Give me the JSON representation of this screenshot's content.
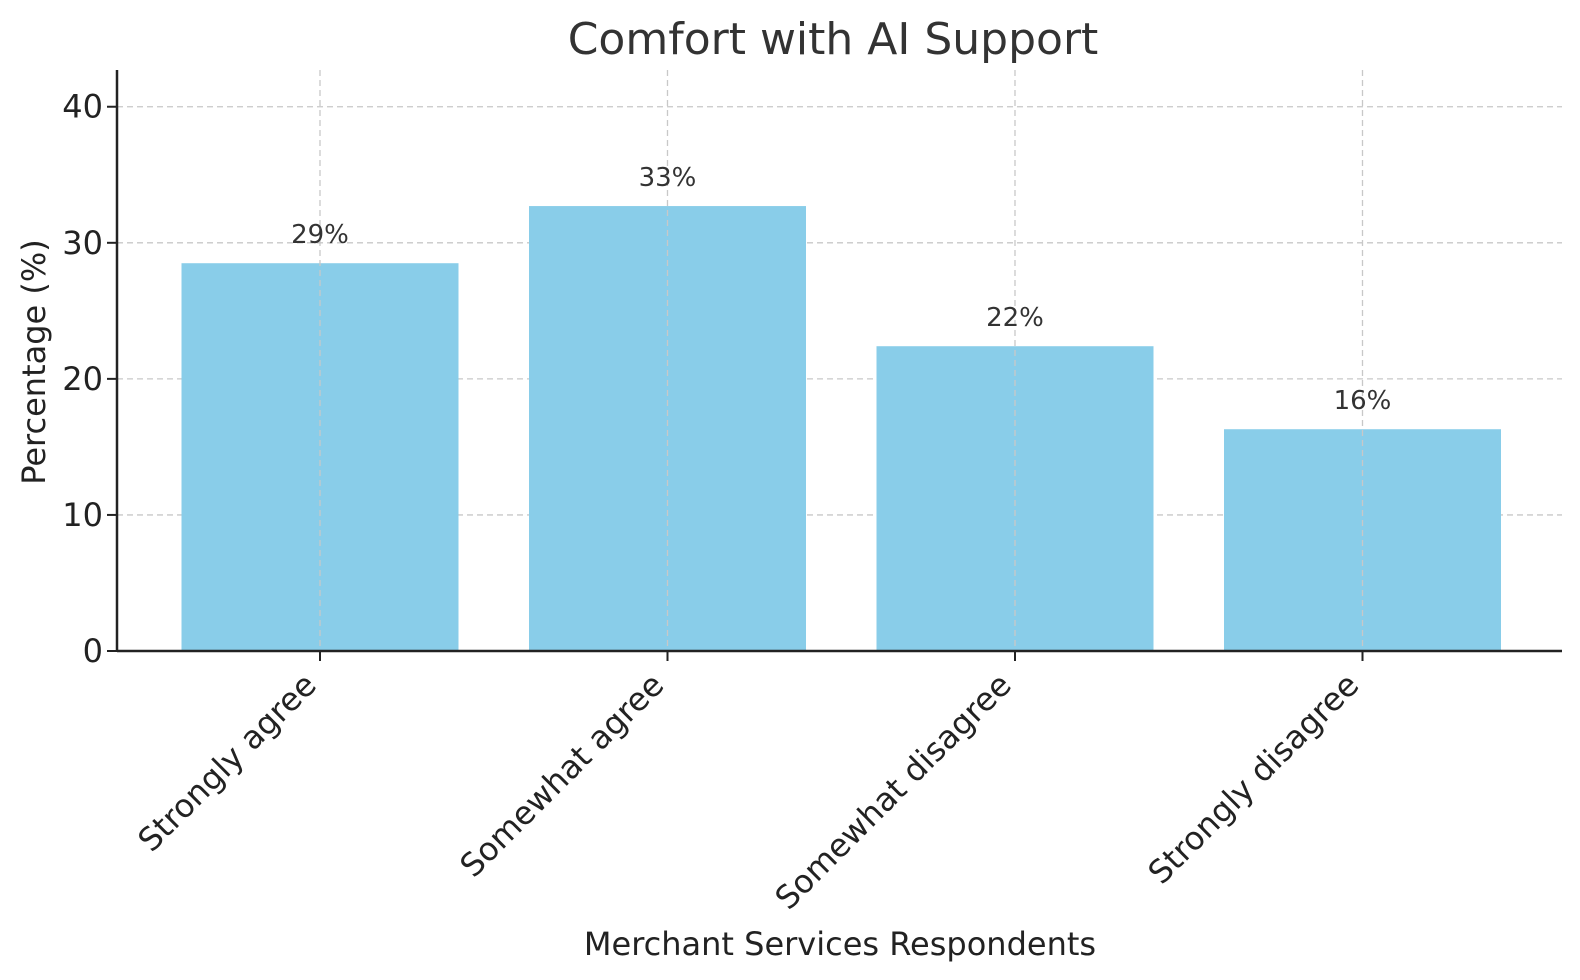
{
  "chart_data": {
    "type": "bar",
    "title": "Comfort with AI Support",
    "xlabel": "Merchant Services Respondents",
    "ylabel": "Percentage (%)",
    "categories": [
      "Strongly agree",
      "Somewhat agree",
      "Somewhat disagree",
      "Strongly disagree"
    ],
    "values": [
      28.5,
      32.7,
      22.4,
      16.3
    ],
    "value_labels": [
      "29%",
      "33%",
      "22%",
      "16%"
    ],
    "ylim": [
      0,
      42.7
    ],
    "yticks": [
      0,
      10,
      20,
      30,
      40
    ],
    "grid": true,
    "bar_color": "#89CDE9"
  }
}
